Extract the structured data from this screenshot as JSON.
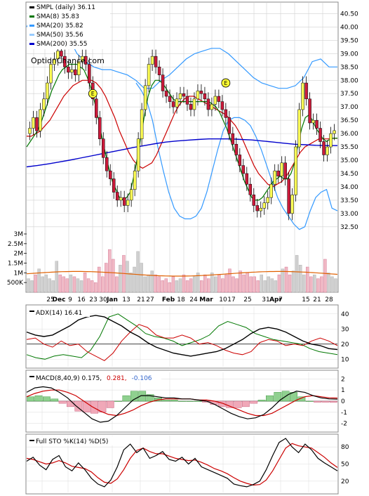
{
  "chart_data": {
    "type": "line",
    "symbol": "SMPL",
    "main": {
      "legend": [
        {
          "label": "SMPL (daily) 36.11",
          "color": "#000000"
        },
        {
          "label": "SMA(8) 35.83",
          "color": "#007700"
        },
        {
          "label": "SMA(20) 35.82",
          "color": "#3399ff"
        },
        {
          "label": "SMA(50) 35.56",
          "color": "#99ccff"
        },
        {
          "label": "SMA(200) 35.55",
          "color": "#0000cc"
        }
      ],
      "watermark": "OptionChance.com",
      "y_ticks": [
        "40.50",
        "40.00",
        "39.50",
        "39.00",
        "38.50",
        "38.00",
        "37.50",
        "37.00",
        "36.50",
        "36.00",
        "35.50",
        "35.00",
        "34.50",
        "34.00",
        "33.50",
        "33.00",
        "32.50"
      ],
      "ylim": [
        32.1,
        40.75
      ],
      "close": [
        36.2,
        36.6,
        36.1,
        36.9,
        37.3,
        37.9,
        38.6,
        38.8,
        39.1,
        38.9,
        38.5,
        38.3,
        38.4,
        38.2,
        38.7,
        38.9,
        38.6,
        37.9,
        37.3,
        36.6,
        35.8,
        35.1,
        34.6,
        34.3,
        33.8,
        33.5,
        33.6,
        33.3,
        33.5,
        33.9,
        34.6,
        35.8,
        36.9,
        37.8,
        38.6,
        38.9,
        38.5,
        38.2,
        37.6,
        37.4,
        37.2,
        37.0,
        37.3,
        37.5,
        37.4,
        37.1,
        36.9,
        37.3,
        37.6,
        37.5,
        37.3,
        36.9,
        37.1,
        37.4,
        37.2,
        36.9,
        36.6,
        36.0,
        35.6,
        35.2,
        34.8,
        34.5,
        34.1,
        33.7,
        33.3,
        33.1,
        33.2,
        33.4,
        33.6,
        34.1,
        34.6,
        34.4,
        34.9,
        34.3,
        33.0,
        33.7,
        35.5,
        36.9,
        37.9,
        37.3,
        36.4,
        36.5,
        36.2,
        35.7,
        35.2,
        35.5,
        36.0,
        36.11
      ],
      "sma8": [
        35.5,
        35.7,
        35.9,
        36.1,
        36.4,
        36.8,
        37.2,
        37.6,
        37.9,
        38.2,
        38.4,
        38.5,
        38.6,
        38.6,
        38.6,
        38.5,
        38.4,
        38.1,
        37.7,
        37.2,
        36.6,
        35.9,
        35.3,
        34.7,
        34.2,
        33.9,
        33.6,
        33.5,
        33.6,
        33.8,
        34.4,
        35.1,
        35.9,
        36.7,
        37.4,
        37.8,
        38.0,
        38.0,
        37.9,
        37.7,
        37.5,
        37.3,
        37.2,
        37.2,
        37.2,
        37.2,
        37.2,
        37.2,
        37.2,
        37.2,
        37.2,
        37.2,
        37.1,
        37.0,
        36.8,
        36.5,
        36.2,
        35.8,
        35.4,
        35.0,
        34.6,
        34.2,
        33.9,
        33.6,
        33.5,
        33.5,
        33.6,
        33.8,
        34.0,
        34.2,
        34.3,
        34.4,
        34.3,
        34.3,
        34.5,
        34.9,
        35.6,
        36.2,
        36.6,
        36.7,
        36.5,
        36.2,
        36.0,
        35.8,
        35.7,
        35.8,
        35.83,
        35.83
      ],
      "sma20": [
        35.9,
        35.9,
        36.0,
        36.1,
        36.3,
        36.5,
        36.8,
        37.1,
        37.4,
        37.6,
        37.8,
        37.9,
        38.0,
        38.0,
        38.0,
        37.9,
        37.7,
        37.4,
        37.0,
        36.6,
        36.1,
        35.7,
        35.3,
        35.0,
        34.8,
        34.7,
        34.8,
        34.9,
        35.2,
        35.6,
        36.0,
        36.4,
        36.8,
        37.1,
        37.3,
        37.4,
        37.4,
        37.3,
        37.2,
        37.1,
        37.0,
        36.9,
        36.8,
        36.7,
        36.5,
        36.3,
        36.0,
        35.6,
        35.2,
        34.8,
        34.5,
        34.3,
        34.1,
        34.0,
        34.1,
        34.2,
        34.4,
        34.7,
        35.0,
        35.3,
        35.5,
        35.6,
        35.7,
        35.8,
        35.8,
        35.8,
        35.82,
        35.82
      ],
      "sma50": [
        36.9,
        36.7,
        36.5,
        36.4,
        36.3,
        36.2,
        36.2,
        36.2,
        36.3,
        36.4,
        36.6,
        36.8,
        36.9,
        37.0,
        37.1,
        37.1,
        37.1,
        37.1,
        37.1,
        37.0,
        37.0,
        36.9,
        36.8,
        36.7,
        36.6,
        36.5,
        36.4,
        36.3,
        36.1,
        36.0,
        35.9,
        35.8,
        35.7,
        35.7,
        35.6,
        35.6,
        35.6,
        35.56
      ],
      "sma200": [
        34.75,
        34.8,
        34.86,
        34.93,
        35.0,
        35.08,
        35.16,
        35.24,
        35.32,
        35.4,
        35.48,
        35.55,
        35.62,
        35.68,
        35.72,
        35.75,
        35.78,
        35.8,
        35.8,
        35.8,
        35.78,
        35.76,
        35.72,
        35.68,
        35.64,
        35.6,
        35.58,
        35.56,
        35.55,
        35.55
      ],
      "bb_upper": [
        40.0,
        40.6,
        40.8,
        40.7,
        40.2,
        39.6,
        39.0,
        38.7,
        38.5,
        38.4,
        38.4,
        38.3,
        38.2,
        38.0,
        37.7,
        37.7,
        38.0,
        38.2,
        38.5,
        38.8,
        39.0,
        39.1,
        39.2,
        39.2,
        39.0,
        38.7,
        38.4,
        38.1,
        37.9,
        37.8,
        37.7,
        37.7,
        37.8,
        38.1,
        38.7,
        38.8,
        38.5,
        38.5
      ],
      "bb_lower": [
        37.9,
        37.6,
        37.2,
        36.5,
        35.5,
        34.6,
        33.8,
        33.2,
        32.9,
        32.8,
        32.8,
        32.9,
        33.2,
        33.8,
        34.6,
        35.4,
        36.1,
        36.5,
        36.6,
        36.6,
        36.5,
        36.3,
        35.9,
        35.4,
        34.8,
        34.2,
        33.6,
        33.2,
        32.9,
        32.6,
        32.4,
        32.5,
        33.1,
        33.6,
        33.8,
        33.9,
        33.2,
        33.1
      ],
      "earnings_markers": [
        "E",
        "E"
      ],
      "volume_ticks": [
        "3M",
        "2.5M",
        "2M",
        "1.5M",
        "1M",
        "500K"
      ],
      "volume_max": 3.0,
      "volume": [
        0.7,
        0.6,
        0.9,
        1.2,
        0.8,
        0.9,
        0.7,
        0.6,
        1.6,
        0.9,
        0.8,
        0.7,
        0.9,
        0.8,
        0.7,
        0.6,
        1.0,
        0.7,
        0.6,
        0.5,
        1.3,
        0.8,
        1.5,
        2.2,
        1.7,
        0.8,
        1.4,
        1.9,
        1.6,
        1.0,
        1.3,
        2.1,
        1.5,
        0.8,
        0.9,
        1.1,
        0.9,
        0.8,
        0.6,
        0.7,
        0.5,
        0.8,
        0.6,
        0.7,
        0.9,
        0.6,
        0.7,
        0.8,
        1.0,
        0.6,
        0.9,
        0.7,
        1.0,
        0.8,
        0.9,
        0.7,
        0.9,
        1.2,
        0.8,
        0.7,
        1.1,
        0.9,
        1.0,
        0.8,
        0.8,
        0.6,
        0.9,
        0.6,
        0.8,
        0.7,
        0.6,
        0.9,
        1.2,
        1.3,
        0.9,
        1.1,
        1.9,
        1.4,
        0.9,
        1.3,
        0.8,
        0.9,
        0.7,
        0.8,
        1.7,
        1.0,
        0.8,
        0.7
      ],
      "volume_avg": 0.95,
      "x_labels": [
        "25",
        "Dec",
        "9",
        "16",
        "23",
        "30",
        "Jan",
        "13",
        "21",
        "27",
        "Feb",
        "18",
        "24",
        "Mar",
        "10",
        "17",
        "25",
        "31",
        "Apr",
        "7",
        "15",
        "21",
        "28"
      ]
    },
    "adx": {
      "legend": "ADX(14) 16.41",
      "y_ticks": [
        "40",
        "30",
        "20",
        "10"
      ],
      "ylim": [
        5,
        45
      ],
      "adx": [
        28,
        26,
        25,
        26,
        29,
        32,
        36,
        38,
        39,
        38,
        35,
        32,
        28,
        25,
        21,
        18,
        16,
        14,
        13,
        12,
        13,
        14,
        15,
        17,
        20,
        23,
        27,
        30,
        31,
        30,
        28,
        25,
        22,
        20,
        19,
        17,
        16.4
      ],
      "plus_di": [
        13,
        11,
        10,
        12,
        13,
        12,
        11,
        16,
        25,
        38,
        40,
        36,
        32,
        27,
        25,
        24,
        22,
        19,
        21,
        23,
        26,
        32,
        35,
        33,
        31,
        27,
        25,
        23,
        22,
        21,
        20,
        17,
        15,
        14,
        13
      ],
      "minus_di": [
        23,
        24,
        20,
        18,
        22,
        19,
        20,
        15,
        12,
        9,
        14,
        22,
        28,
        33,
        31,
        26,
        24,
        24,
        26,
        24,
        20,
        21,
        19,
        16,
        14,
        13,
        15,
        21,
        23,
        22,
        19,
        20,
        19,
        22,
        24,
        22,
        19
      ]
    },
    "macd": {
      "legend": [
        "MACD(8,40,9) 0.175,",
        "0.281,",
        "-0.106"
      ],
      "legend_colors": [
        "#000000",
        "#cc0000",
        "#3366cc"
      ],
      "y_ticks": [
        "2",
        "1",
        "0",
        "-1",
        "-2"
      ],
      "ylim": [
        -2.6,
        2.6
      ],
      "macd": [
        0.8,
        1.2,
        1.3,
        1.2,
        0.8,
        0.3,
        -0.4,
        -1.0,
        -1.6,
        -1.9,
        -1.8,
        -1.3,
        -0.6,
        0.1,
        0.5,
        0.5,
        0.4,
        0.3,
        0.3,
        0.2,
        0.2,
        0.1,
        0.0,
        -0.3,
        -0.7,
        -1.1,
        -1.4,
        -1.6,
        -1.5,
        -1.2,
        -0.6,
        0.1,
        0.6,
        0.9,
        0.8,
        0.5,
        0.3,
        0.2,
        0.18
      ],
      "signal": [
        0.4,
        0.7,
        0.9,
        1.0,
        1.0,
        0.8,
        0.5,
        0.0,
        -0.5,
        -0.9,
        -1.2,
        -1.3,
        -1.1,
        -0.8,
        -0.4,
        -0.1,
        0.1,
        0.2,
        0.2,
        0.2,
        0.2,
        0.1,
        0.1,
        0.0,
        -0.2,
        -0.5,
        -0.8,
        -1.1,
        -1.3,
        -1.3,
        -1.1,
        -0.7,
        -0.3,
        0.1,
        0.4,
        0.5,
        0.4,
        0.3,
        0.28
      ],
      "hist": [
        0.4,
        0.5,
        0.4,
        0.2,
        -0.2,
        -0.5,
        -0.9,
        -1.0,
        -1.1,
        -1.0,
        -0.6,
        0.0,
        0.5,
        0.9,
        0.9,
        0.6,
        0.3,
        0.1,
        0.1,
        0.0,
        0.0,
        0.0,
        -0.1,
        -0.3,
        -0.5,
        -0.6,
        -0.6,
        -0.5,
        -0.2,
        0.1,
        0.5,
        0.8,
        0.9,
        0.8,
        0.4,
        0.0,
        -0.1,
        -0.1,
        -0.11
      ]
    },
    "sto": {
      "legend": "Full STO %K(14) %D(5)",
      "y_ticks": [
        "80",
        "50",
        "20"
      ],
      "ylim": [
        0,
        100
      ],
      "k": [
        55,
        62,
        48,
        40,
        58,
        65,
        45,
        38,
        52,
        40,
        25,
        15,
        10,
        22,
        45,
        75,
        85,
        70,
        78,
        60,
        65,
        72,
        58,
        55,
        62,
        50,
        60,
        45,
        40,
        35,
        30,
        25,
        15,
        12,
        10,
        14,
        20,
        40,
        65,
        88,
        95,
        80,
        70,
        85,
        75,
        60,
        52,
        45,
        38
      ],
      "d": [
        60,
        58,
        54,
        50,
        52,
        56,
        52,
        46,
        44,
        42,
        36,
        26,
        18,
        16,
        24,
        40,
        60,
        74,
        78,
        72,
        68,
        68,
        64,
        60,
        58,
        56,
        57,
        53,
        48,
        42,
        38,
        33,
        26,
        20,
        16,
        13,
        14,
        22,
        38,
        58,
        78,
        86,
        82,
        80,
        78,
        70,
        62,
        52,
        44
      ]
    }
  }
}
